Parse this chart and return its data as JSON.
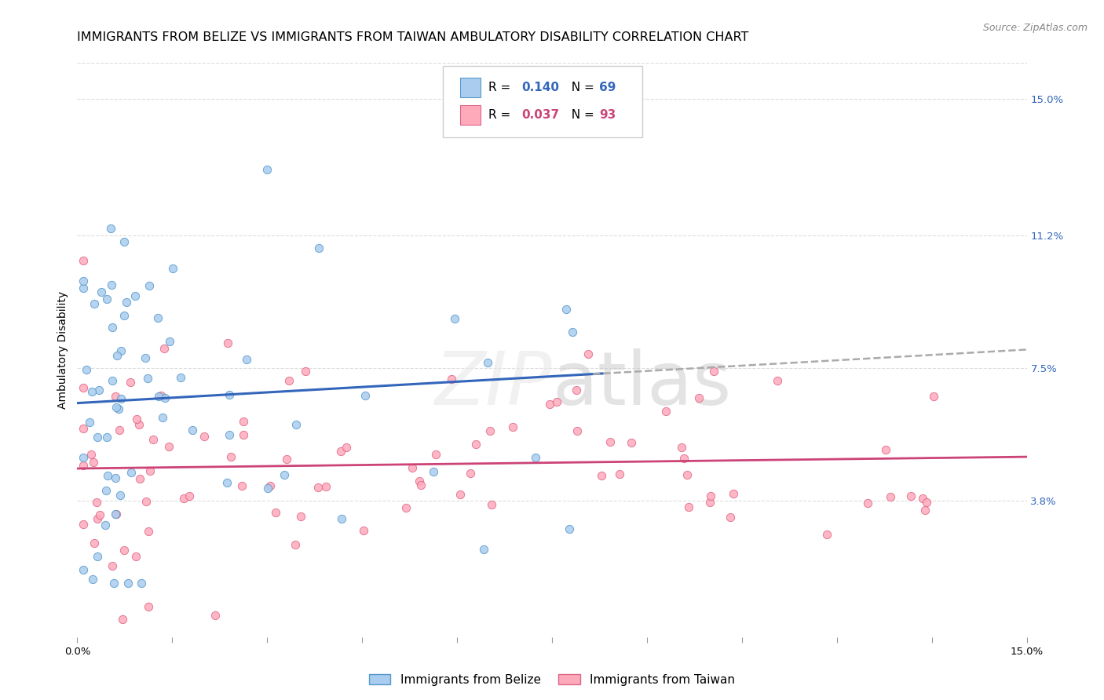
{
  "title": "IMMIGRANTS FROM BELIZE VS IMMIGRANTS FROM TAIWAN AMBULATORY DISABILITY CORRELATION CHART",
  "source": "Source: ZipAtlas.com",
  "ylabel": "Ambulatory Disability",
  "xlim": [
    0,
    0.15
  ],
  "ylim": [
    0.0,
    0.16
  ],
  "right_ytick_labels": [
    "15.0%",
    "11.2%",
    "7.5%",
    "3.8%"
  ],
  "right_ytick_positions": [
    0.15,
    0.112,
    0.075,
    0.038
  ],
  "belize_color": "#aaccee",
  "belize_edge_color": "#5599cc",
  "taiwan_color": "#ffaabb",
  "taiwan_edge_color": "#dd6688",
  "belize_line_color": "#3366bb",
  "taiwan_line_color": "#cc4477",
  "dash_color": "#aaaaaa",
  "belize_R": 0.14,
  "belize_N": 69,
  "taiwan_R": 0.037,
  "taiwan_N": 93,
  "background_color": "#ffffff",
  "grid_color": "#dddddd",
  "title_fontsize": 11.5,
  "label_fontsize": 10,
  "tick_fontsize": 9.5,
  "legend_fontsize": 11,
  "right_tick_color": "#3366bb",
  "watermark": "ZIPatlas"
}
